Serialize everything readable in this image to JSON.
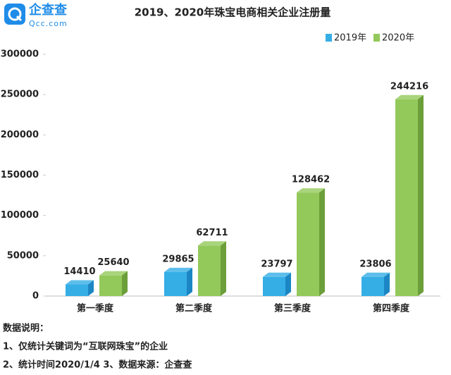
{
  "logo": {
    "name": "企查查",
    "url": "Qcc.com"
  },
  "chart_data": {
    "type": "bar3d",
    "title": "2019、2020年珠宝电商相关企业注册量",
    "categories": [
      "第一季度",
      "第二季度",
      "第三季度",
      "第四季度"
    ],
    "series": [
      {
        "name": "2019年",
        "color": "#35aee6",
        "side": "#1c86c4",
        "values": [
          14410,
          29865,
          23797,
          23806
        ]
      },
      {
        "name": "2020年",
        "color": "#93c95b",
        "side": "#6c9e3a",
        "values": [
          25640,
          62711,
          128462,
          244216
        ]
      }
    ],
    "ylim": [
      0,
      300000
    ],
    "yticks": [
      0,
      50000,
      100000,
      150000,
      200000,
      250000,
      300000
    ],
    "grid": false,
    "legend": "top-right"
  },
  "notes": [
    "数据说明：",
    "1、仅统计关键词为“互联网珠宝”的企业",
    "2、统计时间2020/1/4   3、数据来源：企查查"
  ]
}
